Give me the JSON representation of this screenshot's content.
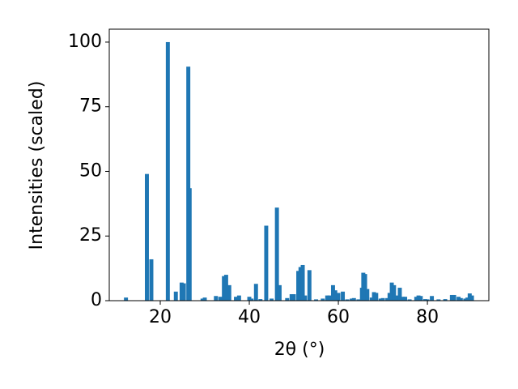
{
  "chart_data": {
    "type": "bar",
    "xlabel": "2θ (°)",
    "ylabel": "Intensities (scaled)",
    "color": "#1f77b4",
    "x": [
      12.3,
      17,
      18,
      21.7,
      23.5,
      24.8,
      25.3,
      26.3,
      26.6,
      29.5,
      30,
      32.5,
      33.5,
      34.3,
      34.8,
      35.5,
      37,
      37.7,
      40,
      40.5,
      41.5,
      42.5,
      43.8,
      45,
      46.2,
      46.8,
      48.5,
      49.5,
      50,
      51,
      51.5,
      52,
      52.5,
      53.5,
      55,
      56.5,
      57.5,
      58,
      58.8,
      59.3,
      60,
      61,
      62,
      63,
      63.5,
      64.5,
      65.3,
      65.6,
      66,
      66.5,
      67.5,
      68,
      68.5,
      69.5,
      70,
      71,
      71.5,
      72,
      72.5,
      73,
      73.8,
      74.5,
      75,
      76,
      77.5,
      78,
      78.5,
      79.5,
      80,
      81,
      82.5,
      84,
      85.5,
      86,
      87,
      87.5,
      88.5,
      89,
      89.5,
      90
    ],
    "values": [
      1.2,
      49,
      16,
      100,
      3.5,
      7,
      6.7,
      90.5,
      43.5,
      0.8,
      1.2,
      1.8,
      1.5,
      9.5,
      10,
      6,
      1.5,
      2,
      1.5,
      0.8,
      6.5,
      0.6,
      29,
      0.8,
      36,
      6,
      1,
      2.5,
      2.5,
      11.5,
      13,
      13.8,
      2,
      11.8,
      0.5,
      0.8,
      2,
      2,
      6,
      4,
      3,
      3.5,
      0.5,
      0.8,
      1,
      0.5,
      5,
      10.8,
      10.3,
      4.5,
      1.2,
      3.3,
      3,
      0.8,
      1,
      1,
      3,
      7,
      6,
      2,
      5,
      1.5,
      1.5,
      0.5,
      1.5,
      2,
      1.8,
      0.6,
      0.5,
      1.8,
      0.5,
      0.6,
      2.2,
      2.2,
      1.5,
      1,
      0.8,
      1.2,
      2.8,
      2
    ],
    "xlim": [
      8.55,
      93.8
    ],
    "ylim": [
      0,
      105
    ],
    "xticks": [
      20,
      40,
      60,
      80
    ],
    "yticks": [
      0,
      25,
      50,
      75,
      100
    ]
  }
}
